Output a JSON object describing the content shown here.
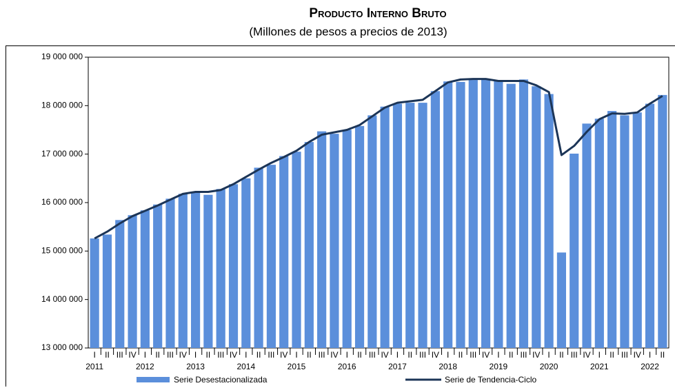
{
  "chart_data": {
    "type": "bar-line",
    "title": "Producto Interno Bruto",
    "subtitle": "(Millones de pesos a precios de 2013)",
    "categories": [
      "I",
      "II",
      "III",
      "IV",
      "I",
      "II",
      "III",
      "IV",
      "I",
      "II",
      "III",
      "IV",
      "I",
      "II",
      "III",
      "IV",
      "I",
      "II",
      "III",
      "IV",
      "I",
      "II",
      "III",
      "IV",
      "I",
      "II",
      "III",
      "IV",
      "I",
      "II",
      "III",
      "IV",
      "I",
      "II",
      "III",
      "IV",
      "I",
      "II",
      "III",
      "IV",
      "I",
      "II",
      "III",
      "IV",
      "I",
      "II"
    ],
    "years": [
      "2011",
      "2012",
      "2013",
      "2014",
      "2015",
      "2016",
      "2017",
      "2018",
      "2019",
      "2020",
      "2021",
      "2022"
    ],
    "series": [
      {
        "name": "Serie Desestacionalizada",
        "type": "bar",
        "color": "#5b8fdb",
        "values": [
          15260000,
          15340000,
          15640000,
          15740000,
          15840000,
          15960000,
          16080000,
          16180000,
          16220000,
          16160000,
          16280000,
          16380000,
          16500000,
          16720000,
          16780000,
          16960000,
          17050000,
          17250000,
          17470000,
          17420000,
          17500000,
          17580000,
          17800000,
          17980000,
          18040000,
          18060000,
          18060000,
          18300000,
          18500000,
          18490000,
          18530000,
          18540000,
          18520000,
          18450000,
          18540000,
          18400000,
          18240000,
          14970000,
          17010000,
          17630000,
          17730000,
          17890000,
          17800000,
          17860000,
          18040000,
          18220000
        ]
      },
      {
        "name": "Serie de Tendencia-Ciclo",
        "type": "line",
        "color": "#1c3557",
        "values": [
          15260000,
          15400000,
          15570000,
          15720000,
          15830000,
          15940000,
          16060000,
          16180000,
          16220000,
          16220000,
          16260000,
          16380000,
          16530000,
          16680000,
          16820000,
          16940000,
          17070000,
          17250000,
          17400000,
          17450000,
          17500000,
          17600000,
          17780000,
          17960000,
          18060000,
          18090000,
          18120000,
          18300000,
          18480000,
          18540000,
          18550000,
          18550000,
          18510000,
          18510000,
          18510000,
          18420000,
          18280000,
          16980000,
          17170000,
          17460000,
          17720000,
          17840000,
          17830000,
          17860000,
          18040000,
          18200000
        ]
      }
    ],
    "ylim": [
      13000000,
      19000000
    ],
    "yticks": [
      {
        "value": 13000000,
        "label": "13 000 000"
      },
      {
        "value": 14000000,
        "label": "14 000 000"
      },
      {
        "value": 15000000,
        "label": "15 000 000"
      },
      {
        "value": 16000000,
        "label": "16 000 000"
      },
      {
        "value": 17000000,
        "label": "17 000 000"
      },
      {
        "value": 18000000,
        "label": "18 000 000"
      },
      {
        "value": 19000000,
        "label": "19 000 000"
      }
    ],
    "grid": false
  }
}
